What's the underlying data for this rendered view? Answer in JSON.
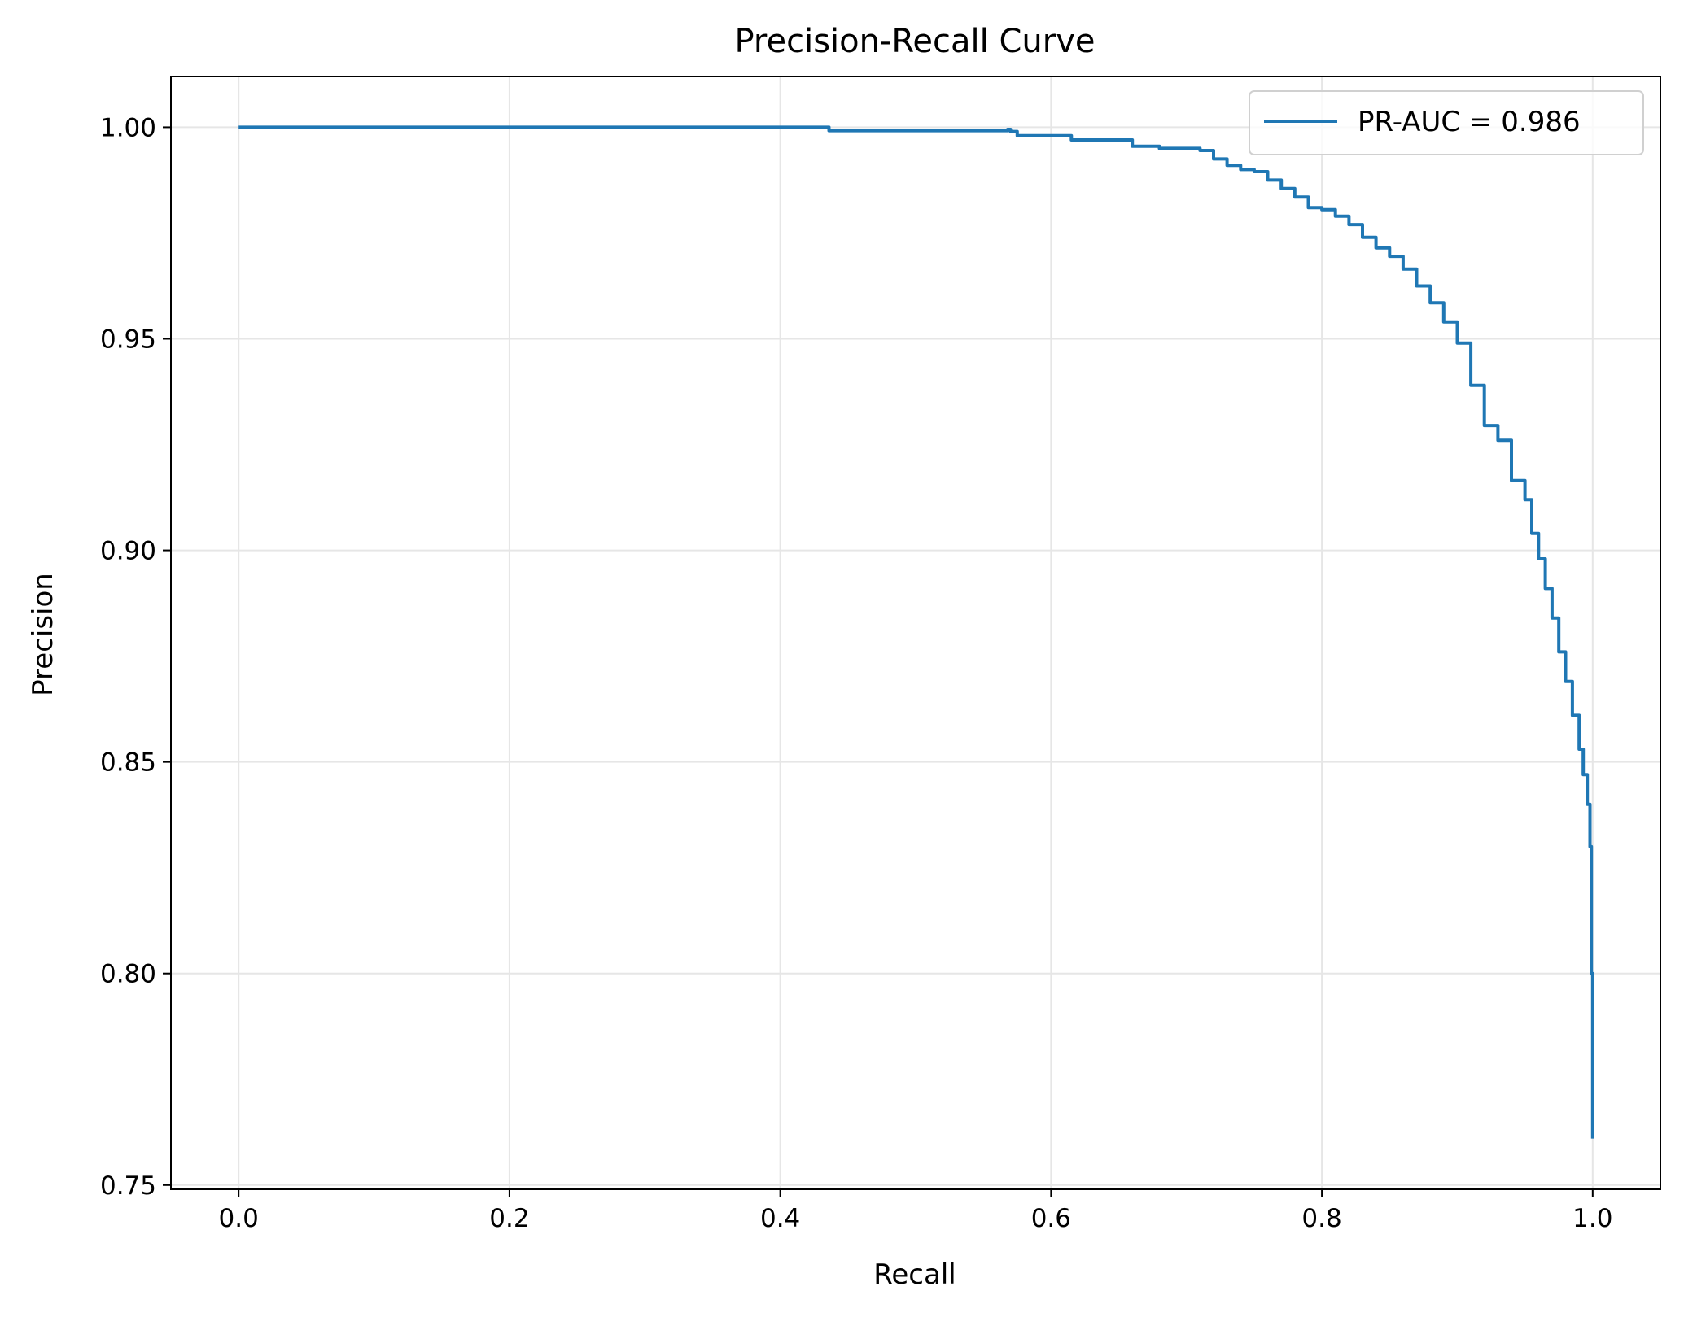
{
  "chart_data": {
    "type": "line",
    "title": "Precision-Recall Curve",
    "xlabel": "Recall",
    "ylabel": "Precision",
    "xlim": [
      -0.05,
      1.05
    ],
    "ylim": [
      0.749,
      1.012
    ],
    "x_ticks": [
      0.0,
      0.2,
      0.4,
      0.6,
      0.8,
      1.0
    ],
    "x_tick_labels": [
      "0.0",
      "0.2",
      "0.4",
      "0.6",
      "0.8",
      "1.0"
    ],
    "y_ticks": [
      0.75,
      0.8,
      0.85,
      0.9,
      0.95,
      1.0
    ],
    "y_tick_labels": [
      "0.75",
      "0.80",
      "0.85",
      "0.90",
      "0.95",
      "1.00"
    ],
    "grid": true,
    "legend_position": "top-right",
    "series": [
      {
        "name": "PR-AUC = 0.986",
        "color": "#1f77b4",
        "x": [
          0.0,
          0.434,
          0.436,
          0.568,
          0.57,
          0.575,
          0.6,
          0.615,
          0.65,
          0.66,
          0.68,
          0.7,
          0.71,
          0.72,
          0.73,
          0.74,
          0.75,
          0.76,
          0.77,
          0.78,
          0.79,
          0.8,
          0.81,
          0.82,
          0.83,
          0.84,
          0.85,
          0.86,
          0.87,
          0.88,
          0.89,
          0.9,
          0.91,
          0.92,
          0.93,
          0.94,
          0.95,
          0.955,
          0.96,
          0.965,
          0.97,
          0.975,
          0.98,
          0.985,
          0.99,
          0.993,
          0.996,
          0.998,
          0.999,
          1.0,
          1.0
        ],
        "y": [
          1.0,
          1.0,
          0.9992,
          0.9995,
          0.999,
          0.998,
          0.998,
          0.997,
          0.997,
          0.9955,
          0.995,
          0.995,
          0.9945,
          0.9925,
          0.991,
          0.99,
          0.9895,
          0.9875,
          0.9855,
          0.9835,
          0.981,
          0.9805,
          0.979,
          0.977,
          0.974,
          0.9715,
          0.9695,
          0.9665,
          0.9625,
          0.9585,
          0.954,
          0.949,
          0.939,
          0.9295,
          0.926,
          0.9165,
          0.912,
          0.904,
          0.898,
          0.891,
          0.884,
          0.876,
          0.869,
          0.861,
          0.853,
          0.847,
          0.84,
          0.83,
          0.8,
          0.78,
          0.761
        ]
      }
    ]
  }
}
